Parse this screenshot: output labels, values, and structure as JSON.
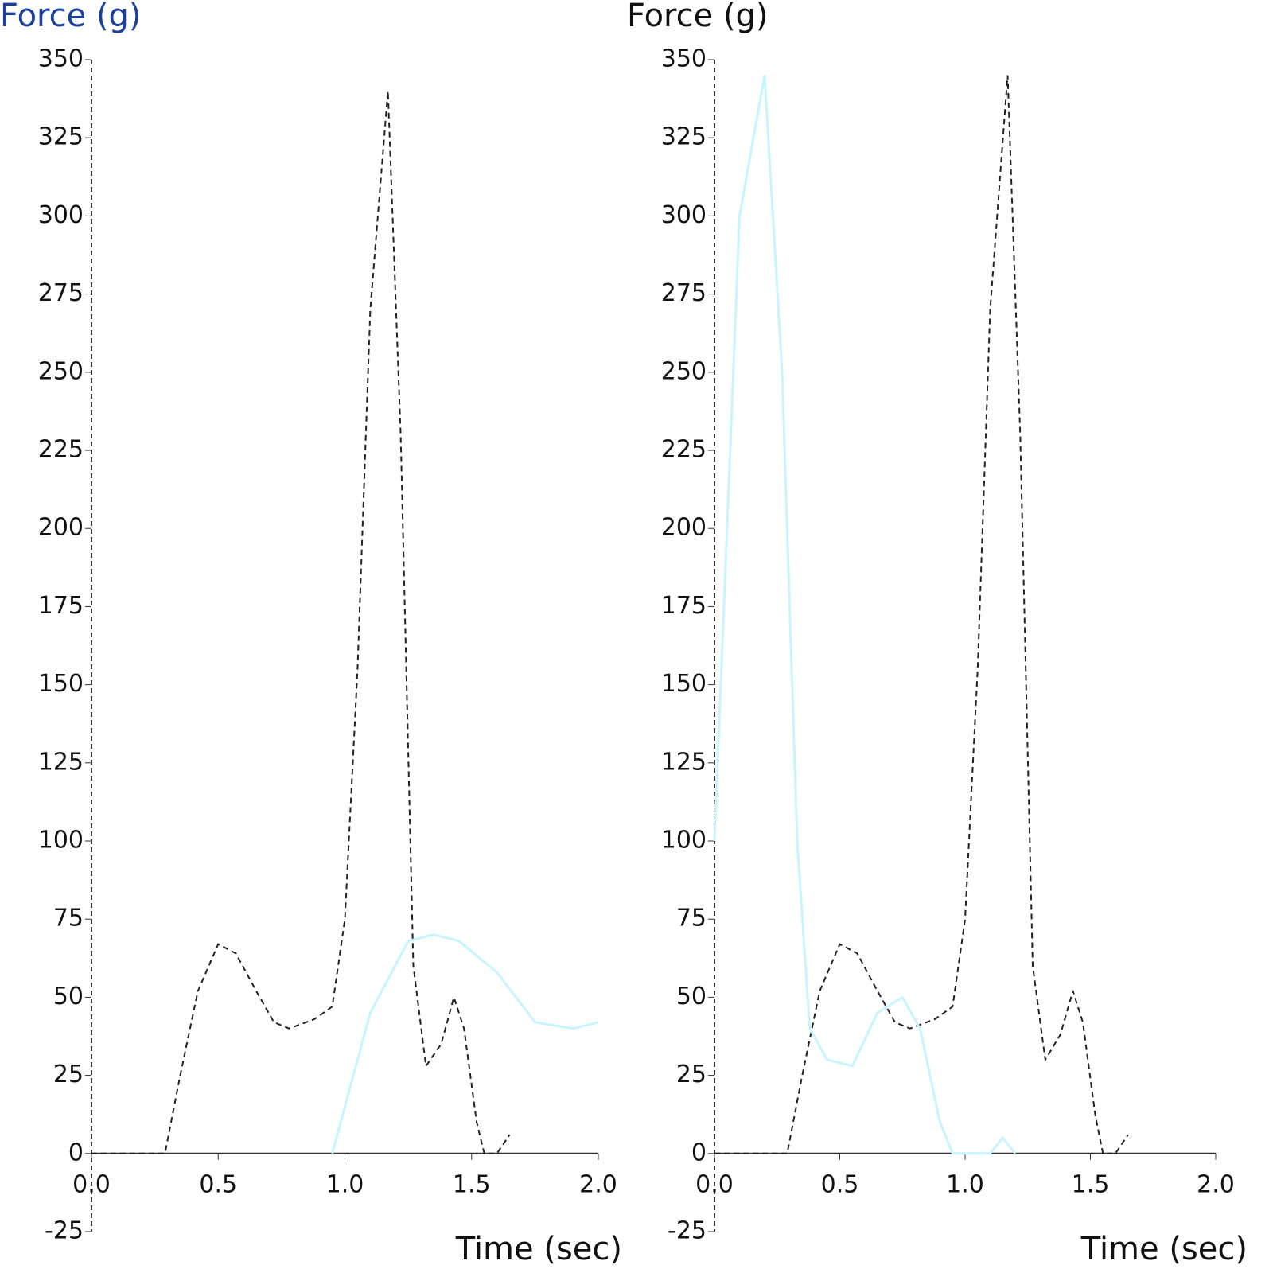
{
  "chart_data": [
    {
      "type": "line",
      "y_label": "Force (g)",
      "x_label": "Time (sec)",
      "xlim": [
        0,
        2
      ],
      "ylim": [
        -25,
        350
      ],
      "xticks": [
        {
          "value": 0,
          "label": "0.0"
        },
        {
          "value": 0.5,
          "label": "0.5"
        },
        {
          "value": 1,
          "label": "1.0"
        },
        {
          "value": 1.5,
          "label": "1.5"
        },
        {
          "value": 2,
          "label": "2.0"
        }
      ],
      "yticks": [
        -25,
        0,
        25,
        50,
        75,
        100,
        125,
        150,
        175,
        200,
        225,
        250,
        275,
        300,
        325,
        350
      ],
      "series": [
        {
          "color": "#222222",
          "dash": true,
          "x": [
            0,
            0.1,
            0.2,
            0.29,
            0.35,
            0.42,
            0.5,
            0.57,
            0.65,
            0.72,
            0.78,
            0.88,
            0.95,
            1.0,
            1.05,
            1.1,
            1.17,
            1.22,
            1.27,
            1.32,
            1.38,
            1.43,
            1.47,
            1.52,
            1.55,
            1.6,
            1.65
          ],
          "values": [
            0,
            0,
            0,
            0,
            25,
            52,
            67,
            64,
            52,
            42,
            40,
            43,
            47,
            75,
            155,
            270,
            340,
            230,
            60,
            28,
            35,
            50,
            40,
            10,
            0,
            0,
            6
          ]
        },
        {
          "color": "#c8f4ff",
          "dash": false,
          "x": [
            0.95,
            1.0,
            1.1,
            1.25,
            1.35,
            1.45,
            1.6,
            1.75,
            1.9,
            2.0
          ],
          "values": [
            0,
            15,
            45,
            68,
            70,
            68,
            58,
            42,
            40,
            42
          ]
        }
      ]
    },
    {
      "type": "line",
      "y_label": "Force (g)",
      "x_label": "Time (sec)",
      "xlim": [
        0,
        2
      ],
      "ylim": [
        -25,
        350
      ],
      "xticks": [
        {
          "value": 0,
          "label": "0.0"
        },
        {
          "value": 0.5,
          "label": "0.5"
        },
        {
          "value": 1,
          "label": "1.0"
        },
        {
          "value": 1.5,
          "label": "1.5"
        },
        {
          "value": 2,
          "label": "2.0"
        }
      ],
      "yticks": [
        -25,
        0,
        25,
        50,
        75,
        100,
        125,
        150,
        175,
        200,
        225,
        250,
        275,
        300,
        325,
        350
      ],
      "series": [
        {
          "color": "#222222",
          "dash": true,
          "x": [
            0,
            0.1,
            0.2,
            0.29,
            0.35,
            0.42,
            0.5,
            0.57,
            0.65,
            0.72,
            0.78,
            0.88,
            0.95,
            1.0,
            1.05,
            1.1,
            1.17,
            1.22,
            1.27,
            1.32,
            1.38,
            1.43,
            1.47,
            1.52,
            1.55,
            1.6,
            1.65
          ],
          "values": [
            0,
            0,
            0,
            0,
            25,
            52,
            67,
            64,
            52,
            42,
            40,
            43,
            47,
            75,
            155,
            270,
            345,
            230,
            60,
            30,
            38,
            52,
            42,
            12,
            0,
            0,
            6
          ]
        },
        {
          "color": "#c8f4ff",
          "dash": false,
          "x": [
            0,
            0.05,
            0.1,
            0.2,
            0.27,
            0.33,
            0.38,
            0.45,
            0.55,
            0.65,
            0.75,
            0.82,
            0.9,
            0.95,
            1.1,
            1.15,
            1.2
          ],
          "values": [
            100,
            200,
            300,
            345,
            250,
            100,
            40,
            30,
            28,
            45,
            50,
            40,
            10,
            0,
            0,
            5,
            0
          ]
        }
      ]
    }
  ]
}
